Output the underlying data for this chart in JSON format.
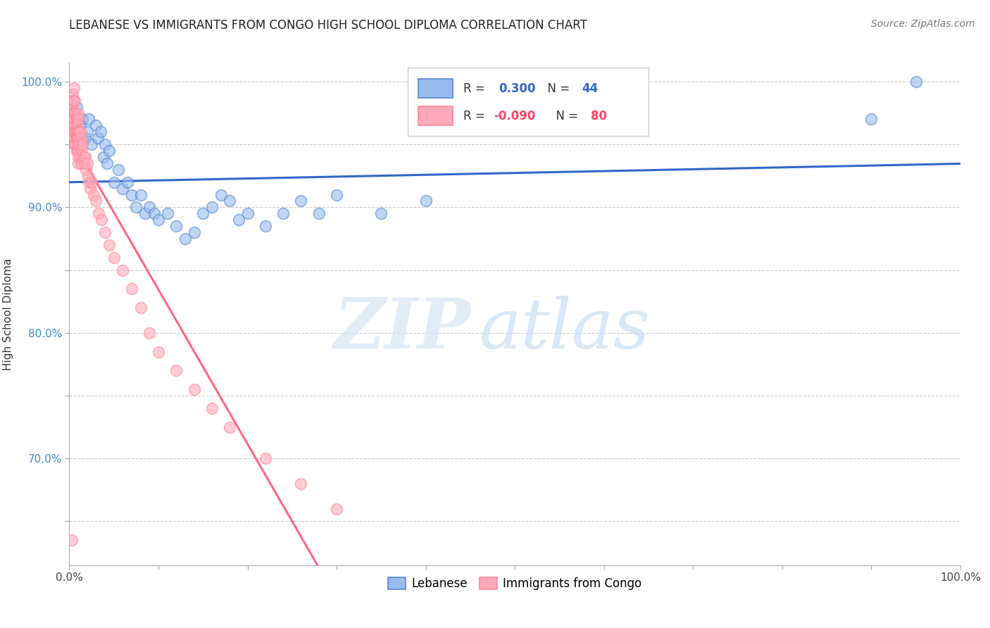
{
  "title": "LEBANESE VS IMMIGRANTS FROM CONGO HIGH SCHOOL DIPLOMA CORRELATION CHART",
  "source": "Source: ZipAtlas.com",
  "ylabel": "High School Diploma",
  "legend_labels": [
    "Lebanese",
    "Immigrants from Congo"
  ],
  "blue_color": "#3366CC",
  "pink_color": "#FF6688",
  "blue_fill": "#99BBEE",
  "pink_fill": "#FFAABB",
  "blue_scatter_edge": "#5588CC",
  "pink_scatter_edge": "#FF8899",
  "watermark_zip": "ZIP",
  "watermark_atlas": "atlas",
  "blue_points_x": [
    0.008,
    0.012,
    0.015,
    0.018,
    0.02,
    0.022,
    0.025,
    0.03,
    0.032,
    0.035,
    0.038,
    0.04,
    0.042,
    0.045,
    0.05,
    0.055,
    0.06,
    0.065,
    0.07,
    0.075,
    0.08,
    0.085,
    0.09,
    0.095,
    0.1,
    0.11,
    0.12,
    0.13,
    0.14,
    0.15,
    0.16,
    0.17,
    0.18,
    0.19,
    0.2,
    0.22,
    0.24,
    0.26,
    0.28,
    0.3,
    0.35,
    0.4,
    0.9,
    0.95
  ],
  "blue_points_y": [
    0.98,
    0.965,
    0.97,
    0.955,
    0.96,
    0.97,
    0.95,
    0.965,
    0.955,
    0.96,
    0.94,
    0.95,
    0.935,
    0.945,
    0.92,
    0.93,
    0.915,
    0.92,
    0.91,
    0.9,
    0.91,
    0.895,
    0.9,
    0.895,
    0.89,
    0.895,
    0.885,
    0.875,
    0.88,
    0.895,
    0.9,
    0.91,
    0.905,
    0.89,
    0.895,
    0.885,
    0.895,
    0.905,
    0.895,
    0.91,
    0.895,
    0.905,
    0.97,
    1.0
  ],
  "pink_points_x": [
    0.003,
    0.003,
    0.003,
    0.003,
    0.003,
    0.004,
    0.004,
    0.004,
    0.004,
    0.004,
    0.004,
    0.005,
    0.005,
    0.005,
    0.005,
    0.005,
    0.005,
    0.005,
    0.005,
    0.006,
    0.006,
    0.006,
    0.006,
    0.006,
    0.007,
    0.007,
    0.007,
    0.007,
    0.008,
    0.008,
    0.008,
    0.008,
    0.009,
    0.009,
    0.009,
    0.01,
    0.01,
    0.01,
    0.01,
    0.01,
    0.01,
    0.01,
    0.01,
    0.011,
    0.011,
    0.012,
    0.012,
    0.013,
    0.013,
    0.014,
    0.015,
    0.016,
    0.017,
    0.018,
    0.019,
    0.02,
    0.021,
    0.022,
    0.023,
    0.025,
    0.027,
    0.03,
    0.033,
    0.036,
    0.04,
    0.045,
    0.05,
    0.06,
    0.07,
    0.08,
    0.09,
    0.1,
    0.12,
    0.14,
    0.16,
    0.18,
    0.22,
    0.26,
    0.3,
    0.003
  ],
  "pink_points_y": [
    0.985,
    0.98,
    0.975,
    0.97,
    0.965,
    0.99,
    0.985,
    0.975,
    0.965,
    0.96,
    0.955,
    0.995,
    0.985,
    0.975,
    0.97,
    0.965,
    0.96,
    0.955,
    0.95,
    0.985,
    0.975,
    0.965,
    0.96,
    0.95,
    0.975,
    0.965,
    0.96,
    0.95,
    0.97,
    0.96,
    0.955,
    0.945,
    0.965,
    0.955,
    0.945,
    0.975,
    0.97,
    0.96,
    0.955,
    0.95,
    0.945,
    0.94,
    0.935,
    0.96,
    0.95,
    0.96,
    0.94,
    0.955,
    0.935,
    0.945,
    0.95,
    0.94,
    0.935,
    0.94,
    0.93,
    0.935,
    0.925,
    0.92,
    0.915,
    0.92,
    0.91,
    0.905,
    0.895,
    0.89,
    0.88,
    0.87,
    0.86,
    0.85,
    0.835,
    0.82,
    0.8,
    0.785,
    0.77,
    0.755,
    0.74,
    0.725,
    0.7,
    0.68,
    0.66,
    0.635
  ],
  "xlim": [
    0.0,
    1.0
  ],
  "ylim": [
    0.615,
    1.015
  ],
  "ytick_positions": [
    0.65,
    0.7,
    0.75,
    0.8,
    0.85,
    0.9,
    0.95,
    1.0
  ],
  "ytick_labels": [
    "",
    "70.0%",
    "",
    "80.0%",
    "",
    "90.0%",
    "",
    "100.0%"
  ],
  "xtick_positions": [
    0.0,
    0.1,
    0.2,
    0.3,
    0.4,
    0.5,
    0.6,
    0.7,
    0.8,
    0.9,
    1.0
  ],
  "xtick_labels": [
    "0.0%",
    "",
    "",
    "",
    "",
    "",
    "",
    "",
    "",
    "",
    "100.0%"
  ],
  "grid_color": "#CCCCCC",
  "background_color": "#FFFFFF"
}
